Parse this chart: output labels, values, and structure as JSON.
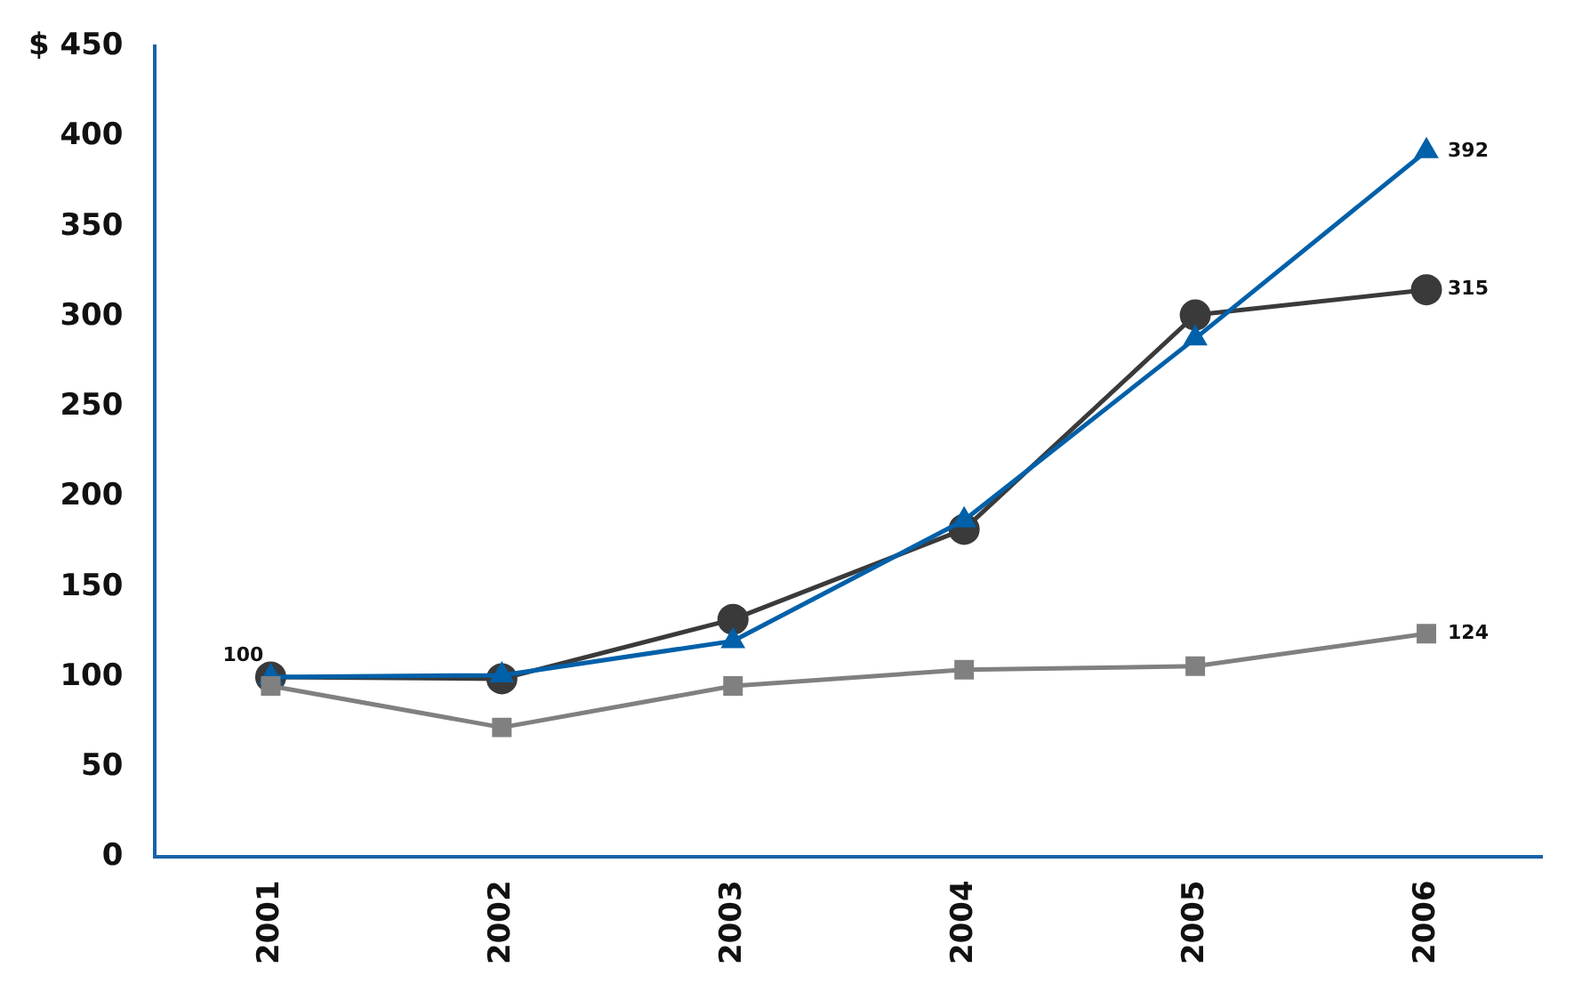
{
  "chart_data": {
    "type": "line",
    "categories": [
      "2001",
      "2002",
      "2003",
      "2004",
      "2005",
      "2006"
    ],
    "series": [
      {
        "color": "#808080",
        "marker": "square",
        "values": [
          95,
          72,
          95,
          104,
          106,
          124
        ],
        "value_labels": [
          null,
          null,
          null,
          null,
          null,
          "124"
        ]
      },
      {
        "color": "#0060a9",
        "marker": "triangle",
        "values": [
          100,
          101,
          120,
          187,
          288,
          392
        ],
        "value_labels": [
          "100",
          null,
          null,
          null,
          null,
          "392"
        ]
      },
      {
        "color": "#3a3a3a",
        "marker": "circle",
        "values": [
          100,
          99,
          132,
          182,
          301,
          315
        ],
        "value_labels": [
          null,
          null,
          null,
          null,
          null,
          "315"
        ]
      }
    ],
    "ylim": [
      0,
      450
    ],
    "yticks": [
      0,
      50,
      100,
      150,
      200,
      250,
      300,
      350,
      400,
      {
        "value": 450,
        "label": "$ 450"
      }
    ],
    "grid": false,
    "legend": false
  }
}
